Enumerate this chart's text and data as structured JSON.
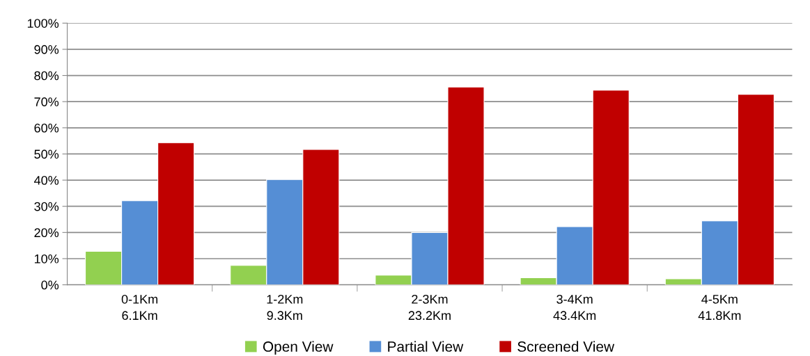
{
  "chart_data": {
    "type": "bar",
    "categories": [
      "0-1Km\n6.1Km",
      "1-2Km\n9.3Km",
      "2-3Km\n23.2Km",
      "3-4Km\n43.4Km",
      "4-5Km\n41.8Km"
    ],
    "series": [
      {
        "name": "Open View",
        "color": "#92d050",
        "values": [
          12.8,
          7.4,
          3.7,
          2.7,
          2.3
        ]
      },
      {
        "name": "Partial View",
        "color": "#558ed5",
        "values": [
          32.1,
          40.2,
          20.0,
          22.2,
          24.4
        ]
      },
      {
        "name": "Screened View",
        "color": "#c00000",
        "values": [
          54.3,
          51.7,
          75.6,
          74.4,
          72.8
        ]
      }
    ],
    "ylim": [
      0,
      100
    ],
    "yticks": [
      {
        "value": 0,
        "label": "0%"
      },
      {
        "value": 10,
        "label": "10%"
      },
      {
        "value": 20,
        "label": "20%"
      },
      {
        "value": 30,
        "label": "30%"
      },
      {
        "value": 40,
        "label": "40%"
      },
      {
        "value": 50,
        "label": "50%"
      },
      {
        "value": 60,
        "label": "60%"
      },
      {
        "value": 70,
        "label": "70%"
      },
      {
        "value": 80,
        "label": "80%"
      },
      {
        "value": 90,
        "label": "90%"
      },
      {
        "value": 100,
        "label": "100%"
      }
    ],
    "grid": "y",
    "legend": "bottom"
  }
}
